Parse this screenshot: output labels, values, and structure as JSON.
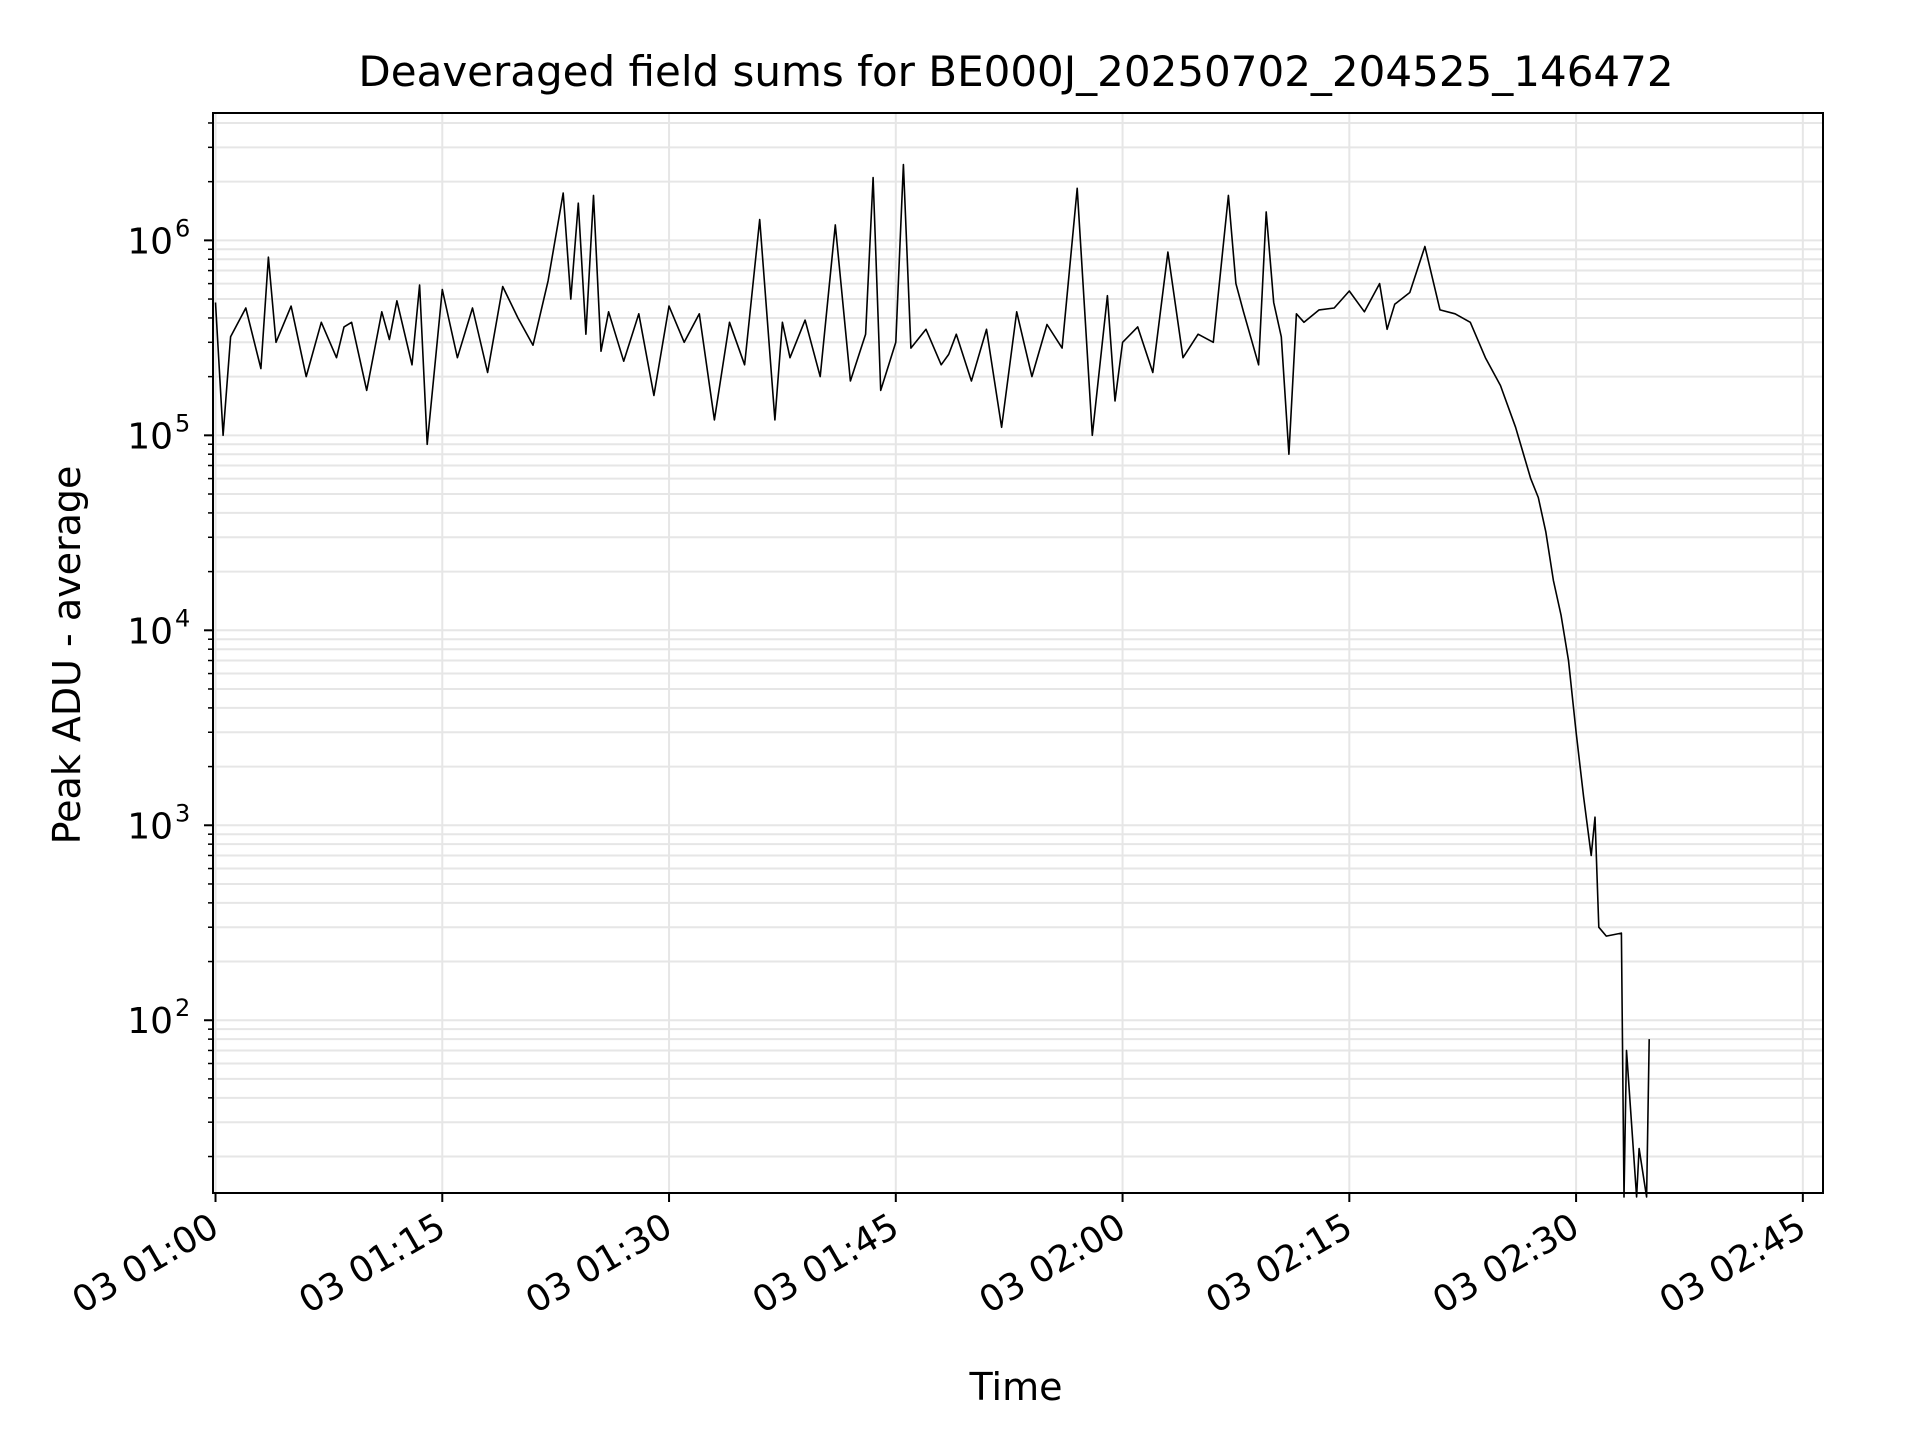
{
  "chart_data": {
    "type": "line",
    "title": "Deaveraged field sums for BE000J_20250702_204525_146472",
    "xlabel": "Time",
    "ylabel": "Peak ADU - average",
    "yscale": "log",
    "grid": true,
    "legend": "none",
    "xlim": [
      "03 00:59:50",
      "03 02:46:20"
    ],
    "ylim": [
      13,
      4500000
    ],
    "x_ticks": [
      "03 01:00",
      "03 01:15",
      "03 01:30",
      "03 01:45",
      "03 02:00",
      "03 02:15",
      "03 02:30",
      "03 02:45"
    ],
    "y_ticks": [
      {
        "base": "10",
        "exp": "2",
        "value": 100
      },
      {
        "base": "10",
        "exp": "3",
        "value": 1000
      },
      {
        "base": "10",
        "exp": "4",
        "value": 10000
      },
      {
        "base": "10",
        "exp": "5",
        "value": 100000
      },
      {
        "base": "10",
        "exp": "6",
        "value": 1000000
      }
    ],
    "line_color": "#000000",
    "grid_color": "#e6e6e6",
    "series": [
      {
        "x": [
          "03 01:00:00",
          "03 01:00:30",
          "03 01:01:00",
          "03 01:02:00",
          "03 01:03:00",
          "03 01:03:30",
          "03 01:04:00",
          "03 01:05:00",
          "03 01:06:00",
          "03 01:07:00",
          "03 01:08:00",
          "03 01:08:30",
          "03 01:09:00",
          "03 01:10:00",
          "03 01:11:00",
          "03 01:11:30",
          "03 01:12:00",
          "03 01:13:00",
          "03 01:13:30",
          "03 01:14:00",
          "03 01:15:00",
          "03 01:16:00",
          "03 01:17:00",
          "03 01:18:00",
          "03 01:19:00",
          "03 01:20:00",
          "03 01:21:00",
          "03 01:22:00",
          "03 01:23:00",
          "03 01:23:30",
          "03 01:24:00",
          "03 01:24:30",
          "03 01:25:00",
          "03 01:25:30",
          "03 01:26:00",
          "03 01:27:00",
          "03 01:28:00",
          "03 01:29:00",
          "03 01:30:00",
          "03 01:31:00",
          "03 01:32:00",
          "03 01:33:00",
          "03 01:34:00",
          "03 01:35:00",
          "03 01:36:00",
          "03 01:37:00",
          "03 01:37:30",
          "03 01:38:00",
          "03 01:39:00",
          "03 01:40:00",
          "03 01:41:00",
          "03 01:42:00",
          "03 01:43:00",
          "03 01:43:30",
          "03 01:44:00",
          "03 01:45:00",
          "03 01:45:30",
          "03 01:46:00",
          "03 01:47:00",
          "03 01:48:00",
          "03 01:48:30",
          "03 01:49:00",
          "03 01:50:00",
          "03 01:51:00",
          "03 01:52:00",
          "03 01:53:00",
          "03 01:54:00",
          "03 01:55:00",
          "03 01:56:00",
          "03 01:57:00",
          "03 01:58:00",
          "03 01:59:00",
          "03 01:59:30",
          "03 02:00:00",
          "03 02:01:00",
          "03 02:02:00",
          "03 02:03:00",
          "03 02:04:00",
          "03 02:05:00",
          "03 02:06:00",
          "03 02:07:00",
          "03 02:07:30",
          "03 02:08:00",
          "03 02:09:00",
          "03 02:09:30",
          "03 02:10:00",
          "03 02:10:30",
          "03 02:11:00",
          "03 02:11:30",
          "03 02:12:00",
          "03 02:13:00",
          "03 02:14:00",
          "03 02:15:00",
          "03 02:16:00",
          "03 02:17:00",
          "03 02:17:30",
          "03 02:18:00",
          "03 02:19:00",
          "03 02:20:00",
          "03 02:21:00",
          "03 02:22:00",
          "03 02:23:00",
          "03 02:24:00",
          "03 02:25:00",
          "03 02:26:00",
          "03 02:27:00",
          "03 02:27:30",
          "03 02:28:00",
          "03 02:28:30",
          "03 02:29:00",
          "03 02:29:30",
          "03 02:30:00",
          "03 02:30:30",
          "03 02:31:00",
          "03 02:31:15",
          "03 02:31:30",
          "03 02:32:00",
          "03 02:33:00",
          "03 02:33:10",
          "03 02:33:20",
          "03 02:34:00",
          "03 02:34:10",
          "03 02:34:40",
          "03 02:34:50"
        ],
        "y": [
          480000,
          100000,
          320000,
          450000,
          220000,
          820000,
          300000,
          460000,
          200000,
          380000,
          250000,
          360000,
          380000,
          170000,
          430000,
          310000,
          490000,
          230000,
          590000,
          90000,
          560000,
          250000,
          450000,
          210000,
          580000,
          400000,
          290000,
          620000,
          1750000,
          500000,
          1550000,
          330000,
          1700000,
          270000,
          430000,
          240000,
          420000,
          160000,
          460000,
          300000,
          420000,
          120000,
          380000,
          230000,
          1280000,
          120000,
          380000,
          250000,
          390000,
          200000,
          1200000,
          190000,
          330000,
          2100000,
          170000,
          300000,
          2450000,
          280000,
          350000,
          230000,
          260000,
          330000,
          190000,
          350000,
          110000,
          430000,
          200000,
          370000,
          280000,
          1850000,
          100000,
          520000,
          150000,
          300000,
          360000,
          210000,
          870000,
          250000,
          330000,
          300000,
          1700000,
          600000,
          430000,
          230000,
          1400000,
          480000,
          320000,
          80000,
          420000,
          380000,
          440000,
          450000,
          550000,
          430000,
          600000,
          350000,
          470000,
          540000,
          930000,
          440000,
          420000,
          380000,
          250000,
          180000,
          110000,
          60000,
          48000,
          32000,
          18000,
          12000,
          7000,
          3000,
          1400,
          700,
          1100,
          300,
          270,
          280,
          0,
          70,
          0,
          22,
          0,
          80
        ]
      }
    ]
  }
}
